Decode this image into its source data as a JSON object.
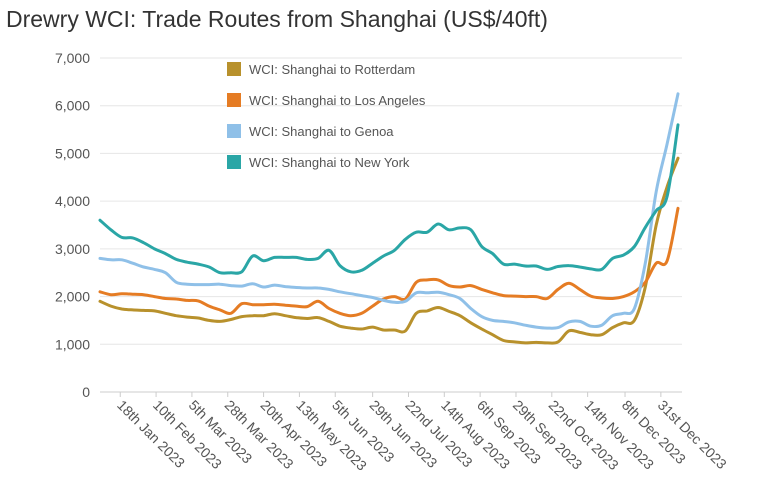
{
  "chart_data": {
    "type": "line",
    "title": "Drewry WCI: Trade Routes from Shanghai (US$/40ft)",
    "xlabel": "",
    "ylabel": "",
    "ylim": [
      0,
      7000
    ],
    "y_ticks": [
      0,
      1000,
      2000,
      3000,
      4000,
      5000,
      6000,
      7000
    ],
    "y_tick_labels": [
      "0",
      "1,000",
      "2,000",
      "3,000",
      "4,000",
      "5,000",
      "6,000",
      "7,000"
    ],
    "grid": true,
    "legend_position": "top-center",
    "x": [
      "05 Jan 2023",
      "12 Jan 2023",
      "19 Jan 2023",
      "26 Jan 2023",
      "02 Feb 2023",
      "09 Feb 2023",
      "16 Feb 2023",
      "23 Feb 2023",
      "02 Mar 2023",
      "09 Mar 2023",
      "16 Mar 2023",
      "23 Mar 2023",
      "30 Mar 2023",
      "06 Apr 2023",
      "13 Apr 2023",
      "20 Apr 2023",
      "27 Apr 2023",
      "04 May 2023",
      "11 May 2023",
      "18 May 2023",
      "25 May 2023",
      "01 Jun 2023",
      "08 Jun 2023",
      "15 Jun 2023",
      "22 Jun 2023",
      "29 Jun 2023",
      "06 Jul 2023",
      "13 Jul 2023",
      "20 Jul 2023",
      "27 Jul 2023",
      "03 Aug 2023",
      "10 Aug 2023",
      "17 Aug 2023",
      "24 Aug 2023",
      "31 Aug 2023",
      "07 Sep 2023",
      "14 Sep 2023",
      "21 Sep 2023",
      "28 Sep 2023",
      "05 Oct 2023",
      "12 Oct 2023",
      "19 Oct 2023",
      "26 Oct 2023",
      "02 Nov 2023",
      "09 Nov 2023",
      "16 Nov 2023",
      "23 Nov 2023",
      "30 Nov 2023",
      "07 Dec 2023",
      "14 Dec 2023",
      "21 Dec 2023",
      "28 Dec 2023",
      "04 Jan 2024",
      "11 Jan 2024"
    ],
    "x_tick_labels": [
      "18th Jan 2023",
      "10th Feb 2023",
      "5th Mar 2023",
      "28th Mar 2023",
      "20th Apr 2023",
      "13th May 2023",
      "5th Jun 2023",
      "29th Jun 2023",
      "22nd Jul 2023",
      "14th Aug 2023",
      "6th Sep 2023",
      "29th Sep 2023",
      "22nd Oct 2023",
      "14th Nov 2023",
      "8th Dec 2023",
      "31st Dec 2023"
    ],
    "x_tick_dates": [
      "18 Jan 2023",
      "10 Feb 2023",
      "05 Mar 2023",
      "28 Mar 2023",
      "20 Apr 2023",
      "13 May 2023",
      "05 Jun 2023",
      "29 Jun 2023",
      "22 Jul 2023",
      "14 Aug 2023",
      "06 Sep 2023",
      "29 Sep 2023",
      "22 Oct 2023",
      "14 Nov 2023",
      "08 Dec 2023",
      "31 Dec 2023"
    ],
    "series": [
      {
        "name": "WCI: Shanghai to Rotterdam",
        "color": "#b8912c",
        "values": [
          1900,
          1800,
          1740,
          1720,
          1710,
          1700,
          1650,
          1600,
          1570,
          1550,
          1500,
          1480,
          1520,
          1580,
          1600,
          1600,
          1640,
          1600,
          1560,
          1540,
          1560,
          1480,
          1380,
          1340,
          1320,
          1360,
          1300,
          1300,
          1280,
          1650,
          1700,
          1770,
          1690,
          1600,
          1450,
          1320,
          1200,
          1080,
          1050,
          1030,
          1040,
          1030,
          1050,
          1280,
          1250,
          1200,
          1200,
          1350,
          1450,
          1500,
          2200,
          3500,
          4300,
          4900
        ]
      },
      {
        "name": "WCI: Shanghai to Los Angeles",
        "color": "#e57c24",
        "values": [
          2100,
          2040,
          2060,
          2050,
          2040,
          2000,
          1960,
          1950,
          1920,
          1910,
          1800,
          1720,
          1650,
          1850,
          1830,
          1830,
          1840,
          1820,
          1800,
          1790,
          1900,
          1750,
          1650,
          1600,
          1650,
          1800,
          1950,
          2000,
          1950,
          2300,
          2350,
          2350,
          2230,
          2200,
          2230,
          2150,
          2080,
          2020,
          2010,
          2000,
          2000,
          1960,
          2150,
          2280,
          2150,
          2010,
          1970,
          1960,
          2000,
          2100,
          2300,
          2700,
          2750,
          3850
        ]
      },
      {
        "name": "WCI: Shanghai to Genoa",
        "color": "#8fc0e8",
        "values": [
          2800,
          2770,
          2770,
          2700,
          2620,
          2570,
          2500,
          2300,
          2260,
          2250,
          2250,
          2260,
          2230,
          2220,
          2270,
          2200,
          2240,
          2210,
          2190,
          2180,
          2180,
          2150,
          2100,
          2060,
          2020,
          1980,
          1920,
          1880,
          1900,
          2080,
          2080,
          2090,
          2040,
          1960,
          1750,
          1580,
          1500,
          1480,
          1450,
          1400,
          1360,
          1340,
          1350,
          1470,
          1480,
          1380,
          1400,
          1600,
          1650,
          1750,
          2700,
          4200,
          5200,
          6250
        ]
      },
      {
        "name": "WCI: Shanghai to New York",
        "color": "#2aa6a6",
        "values": [
          3600,
          3400,
          3240,
          3230,
          3130,
          3000,
          2900,
          2780,
          2720,
          2680,
          2620,
          2500,
          2500,
          2520,
          2850,
          2750,
          2820,
          2820,
          2820,
          2780,
          2800,
          2970,
          2650,
          2520,
          2550,
          2700,
          2850,
          2970,
          3200,
          3350,
          3350,
          3520,
          3400,
          3440,
          3400,
          3050,
          2900,
          2680,
          2680,
          2640,
          2640,
          2570,
          2630,
          2650,
          2620,
          2580,
          2570,
          2800,
          2870,
          3050,
          3450,
          3800,
          4100,
          5600
        ]
      }
    ]
  }
}
